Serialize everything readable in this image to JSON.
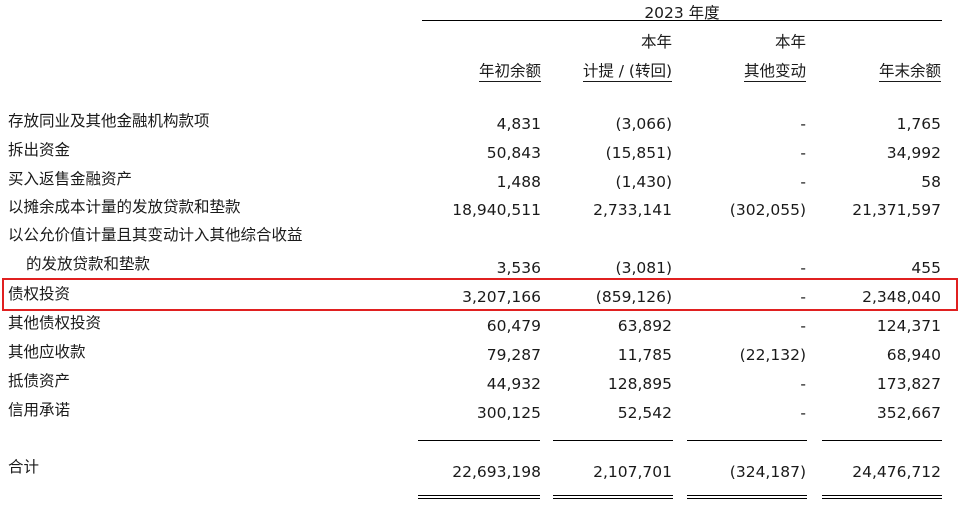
{
  "header": {
    "period": "2023 年度",
    "columns": [
      {
        "line1": "",
        "line2": "年初余额"
      },
      {
        "line1": "本年",
        "line2": "计提 / (转回)"
      },
      {
        "line1": "本年",
        "line2": "其他变动"
      },
      {
        "line1": "",
        "line2": "年末余额"
      }
    ]
  },
  "rows": [
    {
      "label": "存放同业及其他金融机构款项",
      "values": [
        "4,831",
        "(3,066)",
        "-",
        "1,765"
      ]
    },
    {
      "label": "拆出资金",
      "values": [
        "50,843",
        "(15,851)",
        "-",
        "34,992"
      ]
    },
    {
      "label": "买入返售金融资产",
      "values": [
        "1,488",
        "(1,430)",
        "-",
        "58"
      ]
    },
    {
      "label": "以摊余成本计量的发放贷款和垫款",
      "values": [
        "18,940,511",
        "2,733,141",
        "(302,055)",
        "21,371,597"
      ]
    },
    {
      "label": "以公允价值计量且其变动计入其他综合收益",
      "values": [
        "",
        "",
        "",
        ""
      ]
    },
    {
      "label": "的发放贷款和垫款",
      "values": [
        "3,536",
        "(3,081)",
        "-",
        "455"
      ]
    },
    {
      "label": "债权投资",
      "values": [
        "3,207,166",
        "(859,126)",
        "-",
        "2,348,040"
      ],
      "highlighted": true
    },
    {
      "label": "其他债权投资",
      "values": [
        "60,479",
        "63,892",
        "-",
        "124,371"
      ]
    },
    {
      "label": "其他应收款",
      "values": [
        "79,287",
        "11,785",
        "(22,132)",
        "68,940"
      ]
    },
    {
      "label": "抵债资产",
      "values": [
        "44,932",
        "128,895",
        "-",
        "173,827"
      ]
    },
    {
      "label": "信用承诺",
      "values": [
        "300,125",
        "52,542",
        "-",
        "352,667"
      ]
    }
  ],
  "total": {
    "label": "合计",
    "values": [
      "22,693,198",
      "2,107,701",
      "(324,187)",
      "24,476,712"
    ]
  },
  "colors": {
    "highlight_border": "#e02020",
    "text": "#1a1a1a"
  }
}
